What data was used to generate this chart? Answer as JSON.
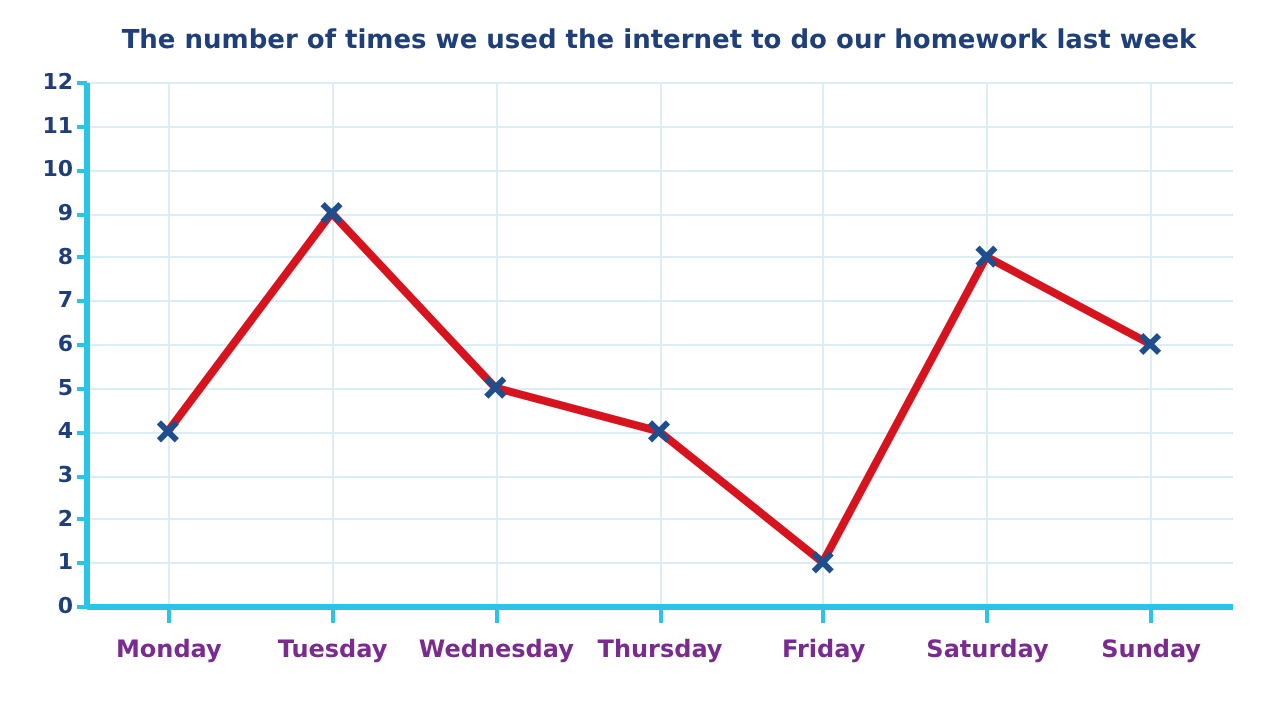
{
  "chart_data": {
    "type": "line",
    "title": "The number of times we used the internet to do our homework last week",
    "categories": [
      "Monday",
      "Tuesday",
      "Wednesday",
      "Thursday",
      "Friday",
      "Saturday",
      "Sunday"
    ],
    "series": [
      {
        "color": "#d7141e",
        "values": [
          4,
          9,
          5,
          4,
          1,
          8,
          6
        ]
      }
    ],
    "ylim": [
      0,
      12
    ],
    "yticks": [
      0,
      1,
      2,
      3,
      4,
      5,
      6,
      7,
      8,
      9,
      10,
      11,
      12
    ],
    "grid": true,
    "marker": "cross",
    "line_style": "solid"
  }
}
